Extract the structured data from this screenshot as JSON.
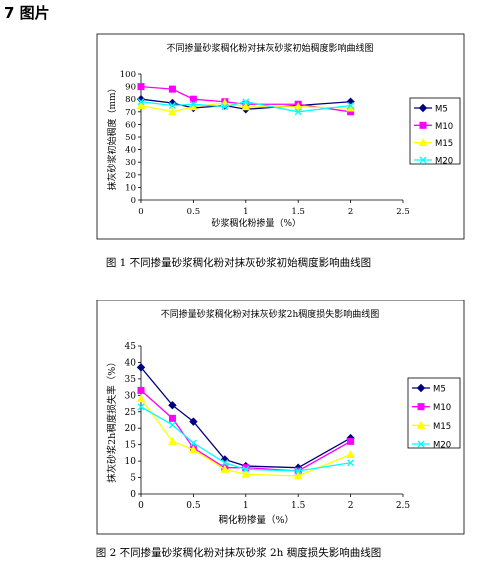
{
  "heading": "7  图片",
  "captions": [
    "图 1   不同掺量砂浆稠化粉对抹灰砂浆初始稠度影响曲线图",
    "图 2  不同掺量砂浆稠化粉对抹灰砂浆 2h 稠度损失影响曲线图"
  ],
  "chart_data": [
    {
      "type": "line",
      "title": "不同掺量砂浆稠化粉对抹灰砂浆初始稠度影响曲线图",
      "xlabel": "砂浆稠化粉掺量（%）",
      "ylabel": "抹灰砂浆初始稠度（mm）",
      "xlim": [
        0,
        2.5
      ],
      "ylim": [
        0,
        100
      ],
      "xticks": [
        "0",
        "0.5",
        "1",
        "1.5",
        "2",
        "2.5"
      ],
      "yticks": [
        "0",
        "10",
        "20",
        "30",
        "40",
        "50",
        "60",
        "70",
        "80",
        "90",
        "100"
      ],
      "grid": false,
      "legend": "right",
      "x": [
        0,
        0.3,
        0.5,
        0.8,
        1.0,
        1.5,
        2.0
      ],
      "series": [
        {
          "name": "M5",
          "values": [
            80,
            77,
            73,
            75,
            72,
            75,
            78
          ],
          "color": "#000080",
          "marker": "diamond"
        },
        {
          "name": "M10",
          "values": [
            90,
            88,
            80,
            78,
            76,
            76,
            70
          ],
          "color": "#ff00ff",
          "marker": "square"
        },
        {
          "name": "M15",
          "values": [
            75,
            70,
            74,
            77,
            74,
            74,
            73
          ],
          "color": "#ffff00",
          "marker": "triangle"
        },
        {
          "name": "M20",
          "values": [
            78,
            75,
            76,
            74,
            78,
            70,
            75
          ],
          "color": "#00ffff",
          "marker": "x"
        }
      ]
    },
    {
      "type": "line",
      "title": "不同掺量砂浆稠化粉对抹灰砂浆2h稠度损失影响曲线图",
      "xlabel": "稠化粉掺量（%）",
      "ylabel": "抹灰砂浆2h稠度损失率（%）",
      "xlim": [
        0,
        2.5
      ],
      "ylim": [
        0,
        45
      ],
      "xticks": [
        "0",
        "0.5",
        "1",
        "1.5",
        "2",
        "2.5"
      ],
      "yticks": [
        "0",
        "5",
        "10",
        "15",
        "20",
        "25",
        "30",
        "35",
        "40",
        "45"
      ],
      "grid": false,
      "legend": "right",
      "x": [
        0,
        0.3,
        0.5,
        0.8,
        1.0,
        1.5,
        2.0
      ],
      "series": [
        {
          "name": "M5",
          "values": [
            38.5,
            27,
            22,
            10.5,
            8.5,
            8,
            17
          ],
          "color": "#000080",
          "marker": "diamond"
        },
        {
          "name": "M10",
          "values": [
            31.5,
            23,
            14,
            8,
            8,
            7,
            16
          ],
          "color": "#ff00ff",
          "marker": "square"
        },
        {
          "name": "M15",
          "values": [
            29,
            16,
            13.5,
            7.5,
            6,
            5.5,
            12
          ],
          "color": "#ffff00",
          "marker": "triangle"
        },
        {
          "name": "M20",
          "values": [
            26.5,
            21,
            15.5,
            9.5,
            7.5,
            7,
            9.5
          ],
          "color": "#00ffff",
          "marker": "x"
        }
      ]
    }
  ]
}
